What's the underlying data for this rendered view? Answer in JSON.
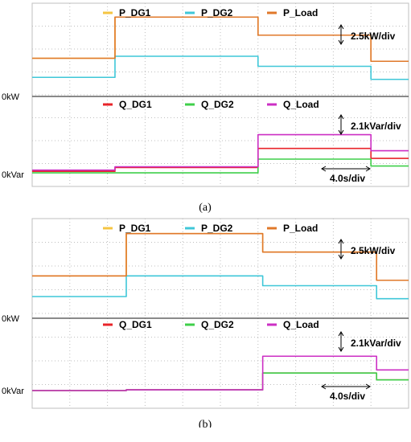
{
  "captions": [
    "(a)",
    "(b)"
  ],
  "colors": {
    "P_DG1": "#f5c542",
    "P_DG2": "#3fc7d8",
    "P_Load": "#e0782a",
    "Q_DG1": "#e8242a",
    "Q_DG2": "#3fcf4a",
    "Q_Load": "#cc2fc4",
    "grid": "#bfbfbf"
  },
  "chart_data": [
    {
      "type": "line",
      "panel": "(a)",
      "x_unit": "s",
      "time_scale": "4.0s/div",
      "time_divisions": 10,
      "top_plot": {
        "legend": [
          "P_DG1",
          "P_DG2",
          "P_Load"
        ],
        "scale": "2.5kW/div",
        "zero_label": "0kW",
        "series": [
          {
            "name": "P_DG1",
            "segments": [
              [
                0,
                8.8,
                1.9
              ],
              [
                8.8,
                24,
                3.95
              ],
              [
                24,
                36,
                3.05
              ],
              [
                36,
                40,
                1.75
              ]
            ]
          },
          {
            "name": "P_DG2",
            "segments": [
              [
                0,
                8.8,
                0.95
              ],
              [
                8.8,
                24,
                2.0
              ],
              [
                24,
                36,
                1.5
              ],
              [
                36,
                40,
                0.85
              ]
            ]
          },
          {
            "name": "P_Load",
            "segments": [
              [
                0,
                8.8,
                1.9
              ],
              [
                8.8,
                24,
                3.95
              ],
              [
                24,
                36,
                3.05
              ],
              [
                36,
                40,
                1.75
              ]
            ]
          }
        ]
      },
      "bottom_plot": {
        "legend": [
          "Q_DG1",
          "Q_DG2",
          "Q_Load"
        ],
        "scale": "2.1kVar/div",
        "zero_label": "0kVar",
        "series": [
          {
            "name": "Q_DG1",
            "segments": [
              [
                0,
                8.8,
                0.2
              ],
              [
                8.8,
                24,
                0.45
              ],
              [
                24,
                36,
                1.7
              ],
              [
                36,
                40,
                1.05
              ]
            ]
          },
          {
            "name": "Q_DG2",
            "segments": [
              [
                0,
                8.8,
                0.1
              ],
              [
                8.8,
                24,
                0.1
              ],
              [
                24,
                36,
                1.0
              ],
              [
                36,
                40,
                0.55
              ]
            ]
          },
          {
            "name": "Q_Load",
            "segments": [
              [
                0,
                8.8,
                0.28
              ],
              [
                8.8,
                24,
                0.5
              ],
              [
                24,
                36,
                2.6
              ],
              [
                36,
                40,
                1.55
              ]
            ]
          }
        ]
      }
    },
    {
      "type": "line",
      "panel": "(b)",
      "x_unit": "s",
      "time_scale": "4.0s/div",
      "time_divisions": 10,
      "top_plot": {
        "legend": [
          "P_DG1",
          "P_DG2",
          "P_Load"
        ],
        "scale": "2.5kW/div",
        "zero_label": "0kW",
        "series": [
          {
            "name": "P_DG1",
            "segments": [
              [
                0,
                10,
                1.95
              ],
              [
                10,
                24.5,
                3.9
              ],
              [
                24.5,
                36.6,
                3.05
              ],
              [
                36.6,
                40,
                1.75
              ]
            ]
          },
          {
            "name": "P_DG2",
            "segments": [
              [
                0,
                10,
                1.0
              ],
              [
                10,
                24.5,
                1.95
              ],
              [
                24.5,
                36.6,
                1.5
              ],
              [
                36.6,
                40,
                0.9
              ]
            ]
          },
          {
            "name": "P_Load",
            "segments": [
              [
                0,
                10,
                1.95
              ],
              [
                10,
                24.5,
                3.9
              ],
              [
                24.5,
                36.6,
                3.05
              ],
              [
                36.6,
                40,
                1.75
              ]
            ]
          }
        ]
      },
      "bottom_plot": {
        "legend": [
          "Q_DG1",
          "Q_DG2",
          "Q_Load"
        ],
        "scale": "2.1kVar/div",
        "zero_label": "0kVar",
        "series": [
          {
            "name": "Q_DG1",
            "segments": [
              [
                0,
                10,
                0.0
              ],
              [
                10,
                24.5,
                0.05
              ],
              [
                24.5,
                36.6,
                1.15
              ],
              [
                36.6,
                40,
                0.7
              ]
            ]
          },
          {
            "name": "Q_DG2",
            "segments": [
              [
                0,
                10,
                0.0
              ],
              [
                10,
                24.5,
                0.05
              ],
              [
                24.5,
                36.6,
                1.15
              ],
              [
                36.6,
                40,
                0.7
              ]
            ]
          },
          {
            "name": "Q_Load",
            "segments": [
              [
                0,
                10,
                0.0
              ],
              [
                10,
                24.5,
                0.05
              ],
              [
                24.5,
                36.6,
                2.25
              ],
              [
                36.6,
                40,
                1.35
              ]
            ]
          }
        ]
      }
    }
  ]
}
